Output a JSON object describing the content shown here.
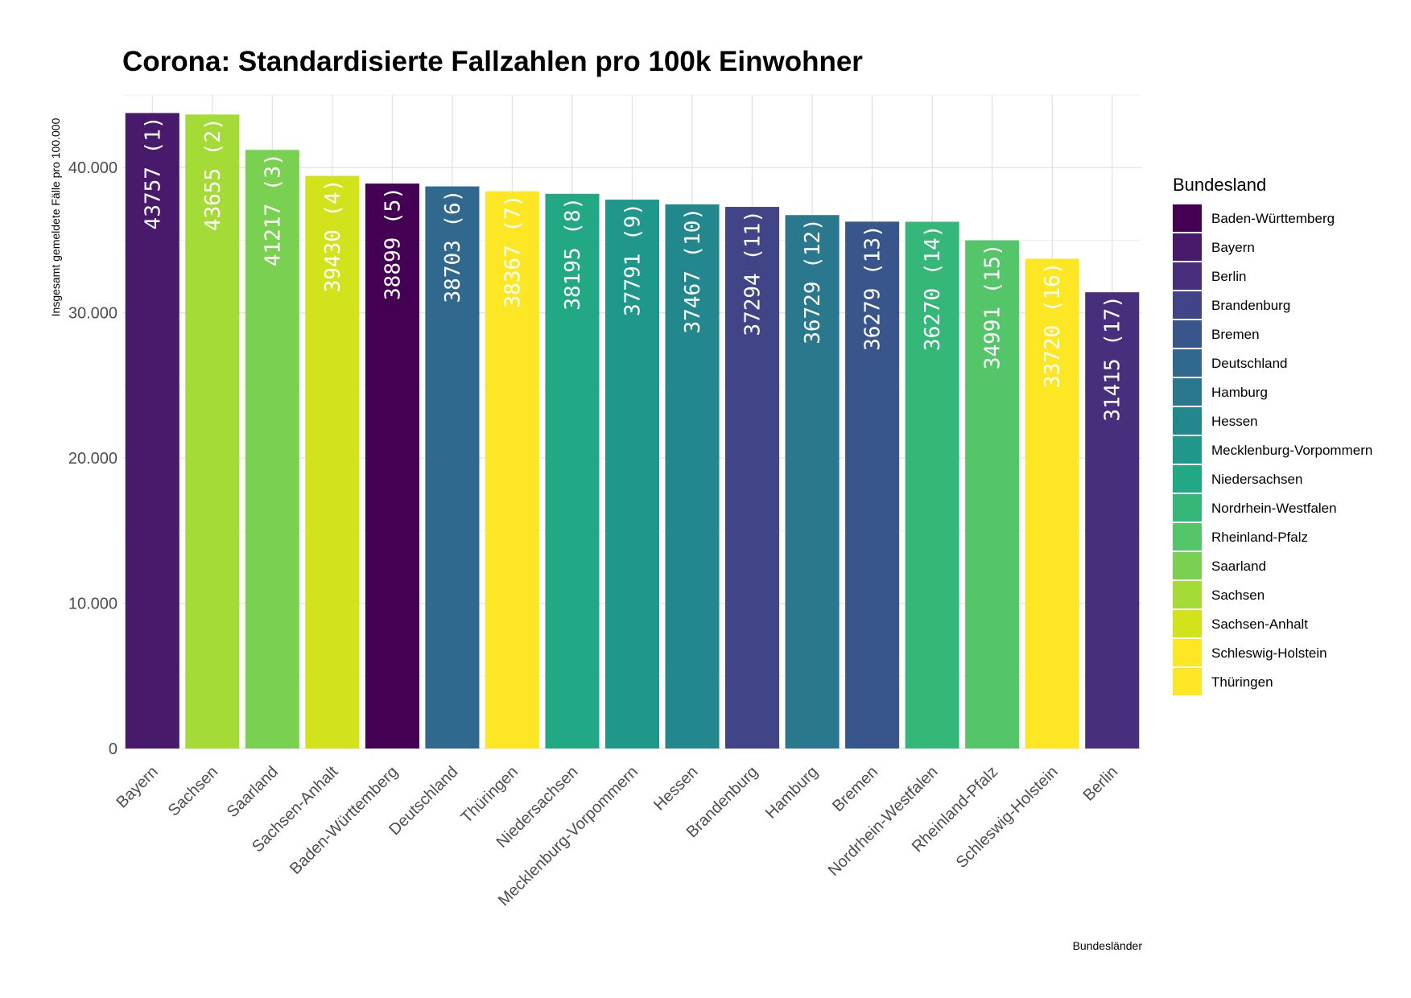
{
  "chart_data": {
    "type": "bar",
    "title": "Corona: Standardisierte Fallzahlen pro 100k Einwohner",
    "xlabel": "Bundesländer",
    "ylabel": "Insgesamt gemeldete Fälle pro 100.000",
    "ylim": [
      0,
      45000
    ],
    "yticks": [
      0,
      10000,
      20000,
      30000,
      40000
    ],
    "ytick_labels": [
      "0",
      "10.000",
      "20.000",
      "30.000",
      "40.000"
    ],
    "grid": true,
    "legend_position": "right",
    "legend_title": "Bundesland",
    "categories": [
      "Bayern",
      "Sachsen",
      "Saarland",
      "Sachsen-Anhalt",
      "Baden-Württemberg",
      "Deutschland",
      "Thüringen",
      "Niedersachsen",
      "Mecklenburg-Vorpommern",
      "Hessen",
      "Brandenburg",
      "Hamburg",
      "Bremen",
      "Nordrhein-Westfalen",
      "Rheinland-Pfalz",
      "Schleswig-Holstein",
      "Berlin"
    ],
    "values": [
      43757,
      43655,
      41217,
      39430,
      38899,
      38703,
      38367,
      38195,
      37791,
      37467,
      37294,
      36729,
      36279,
      36270,
      34991,
      33720,
      31415
    ],
    "data_labels": [
      "43757 (1)",
      "43655 (2)",
      "41217 (3)",
      "39430 (4)",
      "38899 (5)",
      "38703 (6)",
      "38367 (7)",
      "38195 (8)",
      "37791 (9)",
      "37467 (10)",
      "37294 (11)",
      "36729 (12)",
      "36279 (13)",
      "36270 (14)",
      "34991 (15)",
      "33720 (16)",
      "31415 (17)"
    ],
    "legend": [
      {
        "label": "Baden-Württemberg",
        "color": "#440154"
      },
      {
        "label": "Bayern",
        "color": "#481a6c"
      },
      {
        "label": "Berlin",
        "color": "#472f7d"
      },
      {
        "label": "Brandenburg",
        "color": "#414487"
      },
      {
        "label": "Bremen",
        "color": "#39568c"
      },
      {
        "label": "Deutschland",
        "color": "#31688e"
      },
      {
        "label": "Hamburg",
        "color": "#2a788e"
      },
      {
        "label": "Hessen",
        "color": "#23888e"
      },
      {
        "label": "Mecklenburg-Vorpommern",
        "color": "#1f988b"
      },
      {
        "label": "Niedersachsen",
        "color": "#22a884"
      },
      {
        "label": "Nordrhein-Westfalen",
        "color": "#35b779"
      },
      {
        "label": "Rheinland-Pfalz",
        "color": "#54c568"
      },
      {
        "label": "Saarland",
        "color": "#7ad151"
      },
      {
        "label": "Sachsen",
        "color": "#a5db36"
      },
      {
        "label": "Sachsen-Anhalt",
        "color": "#d2e21b"
      },
      {
        "label": "Schleswig-Holstein",
        "color": "#fde725"
      },
      {
        "label": "Thüringen",
        "color": "#fde725"
      }
    ],
    "bar_colors": {
      "Baden-Württemberg": "#440154",
      "Bayern": "#481a6c",
      "Berlin": "#472f7d",
      "Brandenburg": "#414487",
      "Bremen": "#39568c",
      "Deutschland": "#31688e",
      "Hamburg": "#2a788e",
      "Hessen": "#23888e",
      "Mecklenburg-Vorpommern": "#1f988b",
      "Niedersachsen": "#22a884",
      "Nordrhein-Westfalen": "#35b779",
      "Rheinland-Pfalz": "#54c568",
      "Saarland": "#7ad151",
      "Sachsen": "#a5db36",
      "Sachsen-Anhalt": "#d2e21b",
      "Schleswig-Holstein": "#fde725",
      "Thüringen": "#fde725"
    }
  }
}
